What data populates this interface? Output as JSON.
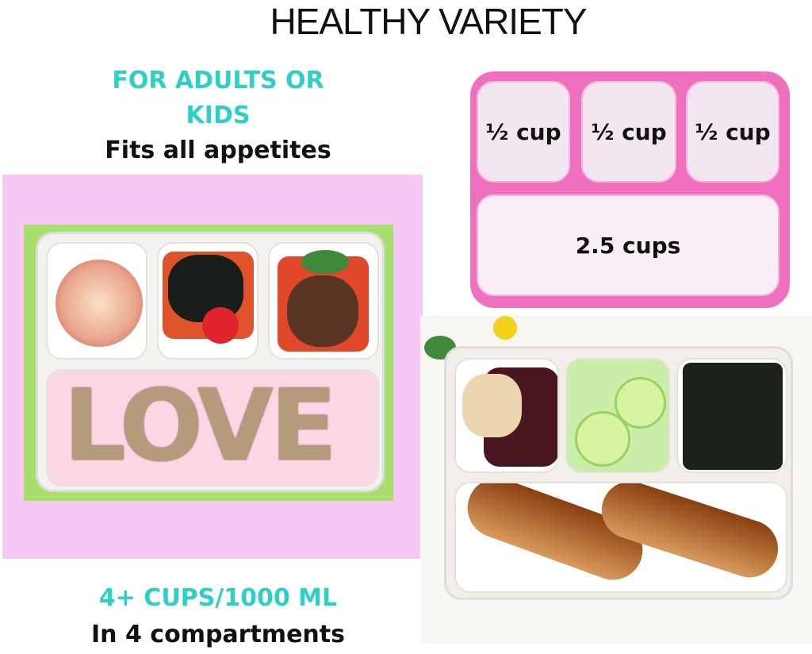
{
  "title": "HEALTHY VARIETY",
  "left": {
    "line1": "FOR ADULTS OR",
    "line2": "KIDS",
    "line3": "Fits all appetites",
    "bottom1": "4+ CUPS/1000 ML",
    "bottom2": "In 4 compartments"
  },
  "compartments": {
    "small1": "½ cup",
    "small2": "½ cup",
    "small3": "½ cup",
    "large": "2.5 cups"
  },
  "photo_left": {
    "sandwich_text": "LOVE"
  },
  "colors": {
    "accent_teal": "#2fcfc6",
    "tray_pink": "#ee70bf",
    "panel_pink": "#f8c8f4",
    "panel_green": "#a7df6c"
  }
}
